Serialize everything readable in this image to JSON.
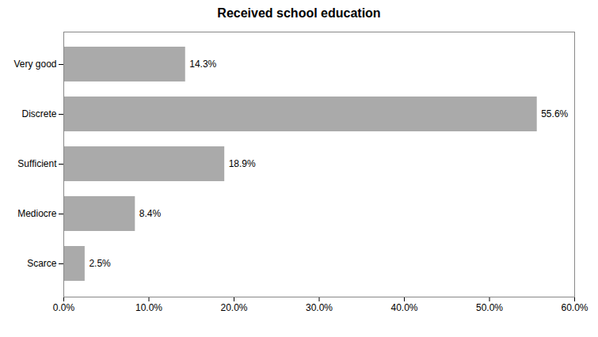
{
  "chart_data": {
    "type": "bar",
    "orientation": "horizontal",
    "title": "Received school education",
    "categories": [
      "Very good",
      "Discrete",
      "Sufficient",
      "Mediocre",
      "Scarce"
    ],
    "values": [
      14.3,
      55.6,
      18.9,
      8.4,
      2.5
    ],
    "value_labels": [
      "14.3%",
      "55.6%",
      "18.9%",
      "8.4%",
      "2.5%"
    ],
    "color": "#aaaaaa",
    "xlim": [
      0,
      60
    ],
    "xticks": [
      {
        "value": 0,
        "label": "0.0%"
      },
      {
        "value": 10,
        "label": "10.0%"
      },
      {
        "value": 20,
        "label": "20.0%"
      },
      {
        "value": 30,
        "label": "30.0%"
      },
      {
        "value": 40,
        "label": "40.0%"
      },
      {
        "value": 50,
        "label": "50.0%"
      },
      {
        "value": 60,
        "label": "60.0%"
      }
    ],
    "grid": false,
    "data_labels": true
  }
}
